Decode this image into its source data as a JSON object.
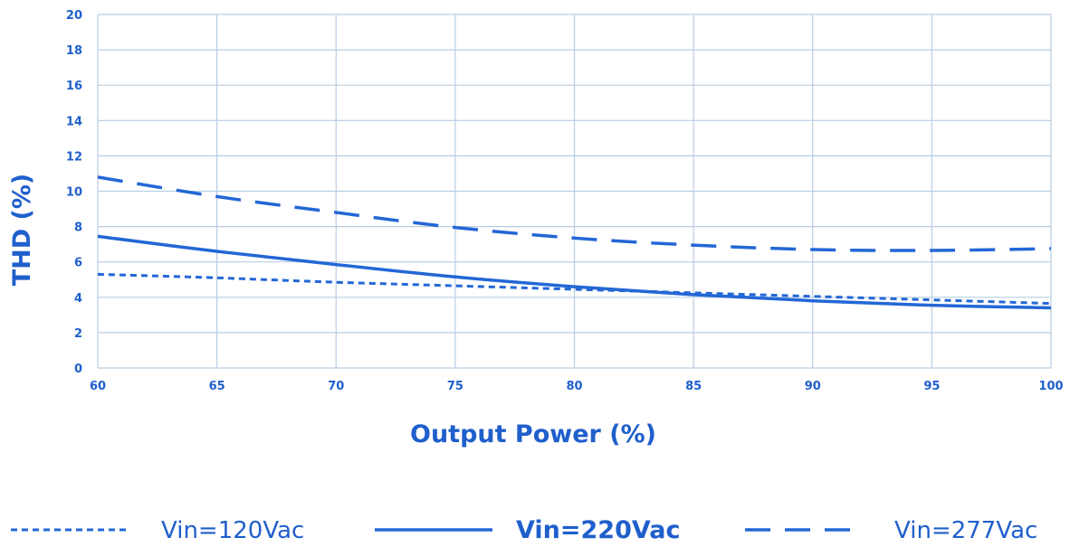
{
  "colors": {
    "series": "#2367d6",
    "grid": "#b8cde2",
    "text": "#1f5fcc"
  },
  "chart_data": {
    "type": "line",
    "title": "",
    "xlabel": "Output Power (%)",
    "ylabel": "THD (%)",
    "xlim": [
      60,
      100
    ],
    "ylim": [
      0,
      20
    ],
    "x_ticks": [
      "60",
      "65",
      "70",
      "75",
      "80",
      "85",
      "90",
      "95",
      "100"
    ],
    "y_ticks": [
      "0",
      "2",
      "4",
      "6",
      "8",
      "10",
      "12",
      "14",
      "16",
      "18",
      "20"
    ],
    "grid": true,
    "legend_position": "bottom",
    "x": [
      60,
      65,
      70,
      75,
      80,
      85,
      90,
      95,
      100
    ],
    "series": [
      {
        "name": "Vin=120Vac",
        "style": "dotted",
        "values": [
          5.3,
          5.1,
          4.85,
          4.65,
          4.45,
          4.25,
          4.05,
          3.85,
          3.65
        ]
      },
      {
        "name": "Vin=220Vac",
        "style": "solid",
        "values": [
          7.45,
          6.6,
          5.85,
          5.15,
          4.6,
          4.15,
          3.8,
          3.55,
          3.4
        ]
      },
      {
        "name": "Vin=277Vac",
        "style": "dashed",
        "values": [
          10.8,
          9.7,
          8.8,
          7.95,
          7.35,
          6.95,
          6.7,
          6.65,
          6.75
        ]
      }
    ]
  }
}
